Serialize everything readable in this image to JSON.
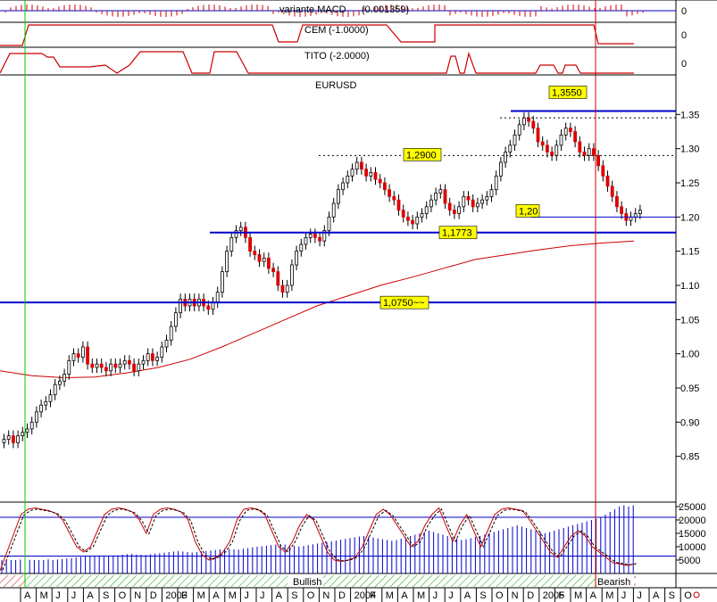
{
  "chart_data": [
    {
      "type": "histogram",
      "title": "variante MACD",
      "value_label": "(0.001359)",
      "right_label": "0"
    },
    {
      "type": "line",
      "title": "CEM",
      "value_label": "(-1.0000)",
      "right_label": "0",
      "levels": [
        -1,
        0
      ]
    },
    {
      "type": "line",
      "title": "TITO",
      "value_label": "(-2.0000)",
      "right_label": "0",
      "levels": [
        -2,
        0
      ]
    },
    {
      "type": "candlestick",
      "title": "EURUSD",
      "ylim": [
        0.8,
        1.4
      ],
      "yticks": [
        "1.35",
        "1.30",
        "1.25",
        "1.20",
        "1.15",
        "1.10",
        "1.05",
        "1.00",
        "0.95",
        "0.90",
        "0.85"
      ],
      "ma_color": "#cc0000",
      "up_color": "#ffffff",
      "down_color": "#dd0000",
      "close_series": [
        0.875,
        0.88,
        0.87,
        0.88,
        0.885,
        0.89,
        0.9,
        0.915,
        0.925,
        0.93,
        0.94,
        0.955,
        0.96,
        0.97,
        0.99,
        1.0,
        0.995,
        1.01,
        0.985,
        0.98,
        0.985,
        0.98,
        0.975,
        0.985,
        0.98,
        0.985,
        0.99,
        0.985,
        0.975,
        0.985,
        0.99,
        1.0,
        0.99,
        0.995,
        1.01,
        1.02,
        1.04,
        1.06,
        1.08,
        1.07,
        1.08,
        1.07,
        1.08,
        1.07,
        1.065,
        1.075,
        1.09,
        1.12,
        1.15,
        1.17,
        1.18,
        1.185,
        1.17,
        1.15,
        1.145,
        1.135,
        1.14,
        1.125,
        1.12,
        1.1,
        1.09,
        1.1,
        1.13,
        1.15,
        1.16,
        1.17,
        1.175,
        1.17,
        1.165,
        1.18,
        1.2,
        1.22,
        1.24,
        1.25,
        1.26,
        1.27,
        1.28,
        1.27,
        1.26,
        1.265,
        1.255,
        1.25,
        1.24,
        1.23,
        1.225,
        1.21,
        1.2,
        1.195,
        1.19,
        1.2,
        1.205,
        1.215,
        1.225,
        1.235,
        1.24,
        1.22,
        1.21,
        1.205,
        1.215,
        1.23,
        1.225,
        1.215,
        1.22,
        1.225,
        1.23,
        1.24,
        1.26,
        1.28,
        1.295,
        1.305,
        1.32,
        1.335,
        1.345,
        1.34,
        1.33,
        1.31,
        1.305,
        1.295,
        1.29,
        1.305,
        1.32,
        1.33,
        1.325,
        1.31,
        1.295,
        1.29,
        1.3,
        1.29,
        1.275,
        1.26,
        1.245,
        1.23,
        1.215,
        1.205,
        1.195,
        1.2,
        1.205,
        1.21
      ],
      "ma_values": [
        0.975,
        0.968,
        0.965,
        0.966,
        0.972,
        0.98,
        0.992,
        1.01,
        1.03,
        1.05,
        1.07,
        1.085,
        1.1,
        1.112,
        1.125,
        1.138,
        1.145,
        1.152,
        1.158,
        1.162,
        1.165
      ],
      "annotations": [
        "1,3550",
        "1,2900",
        "1,20",
        "1,1773",
        "1,0750~~"
      ],
      "levels": [
        1.355,
        1.29,
        1.2,
        1.1773,
        1.075,
        1.345
      ]
    },
    {
      "type": "line+bar",
      "yticks": [
        "25000",
        "20000",
        "15000",
        "10000",
        "5000"
      ],
      "ylim": [
        0,
        26000
      ],
      "reference_lines": [
        21000,
        6500
      ],
      "volume": [
        5000,
        5000,
        5000,
        5000,
        5200,
        5000,
        5100,
        5000,
        5000,
        5000,
        5300,
        5000,
        5200,
        5400,
        5600,
        5800,
        6000,
        6200,
        6400,
        6500,
        6600,
        6400,
        6300,
        6500,
        6700,
        6800,
        7000,
        7200,
        7300,
        7100,
        7000,
        6900,
        7200,
        7400,
        7600,
        7800,
        8000,
        8200,
        8400,
        8200,
        8000,
        7800,
        8000,
        8200,
        8400,
        8600,
        8800,
        9000,
        9200,
        9100,
        9000,
        8900,
        9200,
        9500,
        9800,
        10000,
        10200,
        10400,
        10600,
        10800,
        11000,
        10800,
        10500,
        10300,
        10100,
        10300,
        10600,
        10900,
        11200,
        11500,
        11800,
        12000,
        12300,
        12600,
        12900,
        13200,
        13500,
        13800,
        14000,
        13700,
        13400,
        13100,
        12800,
        12500,
        12200,
        12500,
        13000,
        13500,
        14000,
        14500,
        15000,
        15500,
        16000,
        15500,
        15000,
        14500,
        14000,
        13500,
        13000,
        12500,
        12800,
        13200,
        13600,
        14000,
        14500,
        15000,
        15500,
        16000,
        16500,
        17000,
        17500,
        18000,
        17500,
        17000,
        16500,
        16000,
        15500,
        15000,
        15500,
        16000,
        16500,
        17000,
        17500,
        18000,
        18500,
        19000,
        19500,
        20000,
        20500,
        21000,
        22000,
        23000,
        24000,
        25000,
        25500,
        25000,
        25500,
        25000
      ],
      "oscillator": [
        1000,
        8000,
        15000,
        22000,
        24000,
        24500,
        24000,
        23500,
        22500,
        20000,
        15000,
        10000,
        8000,
        10000,
        16000,
        22000,
        24000,
        24500,
        24000,
        23000,
        20000,
        15000,
        22000,
        24000,
        24500,
        24000,
        23000,
        20000,
        12000,
        7000,
        5000,
        6000,
        8000,
        12000,
        20000,
        24000,
        24500,
        24000,
        22000,
        16000,
        10000,
        8000,
        12000,
        18000,
        22000,
        20000,
        14000,
        8000,
        5000,
        4500,
        5000,
        6000,
        10000,
        16000,
        22000,
        24000,
        22000,
        18000,
        14000,
        10000,
        12000,
        18000,
        22000,
        24500,
        18000,
        12000,
        18000,
        22000,
        16000,
        10000,
        16000,
        22000,
        24000,
        24500,
        24000,
        23500,
        20000,
        16000,
        12000,
        8000,
        6000,
        10000,
        14000,
        16000,
        14000,
        10000,
        8000,
        6000,
        4000,
        3500,
        3000,
        3500
      ]
    }
  ],
  "xaxis": {
    "labels": [
      "A",
      "M",
      "J",
      "J",
      "A",
      "S",
      "O",
      "N",
      "D",
      "2003",
      "F",
      "M",
      "A",
      "M",
      "J",
      "J",
      "A",
      "S",
      "O",
      "N",
      "D",
      "2004",
      "F",
      "M",
      "A",
      "M",
      "J",
      "J",
      "A",
      "S",
      "O",
      "N",
      "D",
      "2005",
      "F",
      "M",
      "A",
      "M",
      "J",
      "J",
      "A",
      "S",
      "O"
    ],
    "bullish_label": "Bullish",
    "bearish_label": "Bearish"
  },
  "colors": {
    "blue": "#0000cc",
    "red": "#cc0000",
    "green": "#00cc00",
    "label_bg": "#ffff00"
  }
}
